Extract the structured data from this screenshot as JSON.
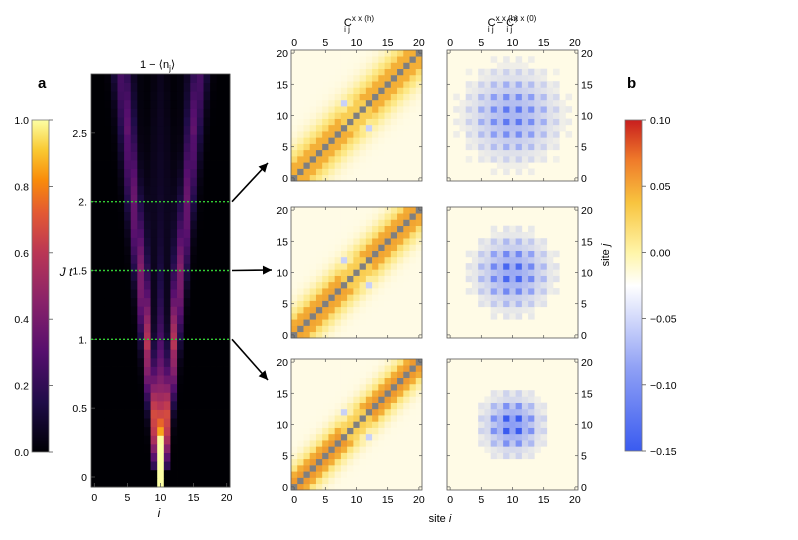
{
  "panel_labels": {
    "a": "a",
    "b": "b"
  },
  "heatmap_title": "1 − ⟨n",
  "heatmap_title_sub": "j",
  "heatmap_title_close": "⟩",
  "top_title_left": "C",
  "top_title_left_sup": "x x (h)",
  "top_title_left_sub": "i j",
  "top_title_right_a": "C",
  "top_title_right_a_sup": "x x (h)",
  "top_title_right_a_sub": "i j",
  "top_title_minus": " − ",
  "top_title_right_b": "C",
  "top_title_right_b_sup": "x x (0)",
  "top_title_right_b_sub": "i j",
  "bottom_axis_label_pre": "site ",
  "bottom_axis_label_var": "i",
  "right_axis_label_pre": "site ",
  "right_axis_label_var": "j",
  "colors": {
    "marker_line": "#33cc33",
    "diagonal": "#7f7f7f",
    "background_low": "#fffbe6",
    "inferno_high": "#fcffa4"
  },
  "chart_data": [
    {
      "type": "heatmap",
      "name": "occupation",
      "title": "1 − ⟨nj⟩",
      "xlabel": "i",
      "ylabel": "J t",
      "xlim": [
        0,
        20
      ],
      "ylim": [
        0,
        3
      ],
      "x_ticks": [
        "0",
        "5",
        "10",
        "15",
        "20"
      ],
      "y_ticks": [
        "0",
        "0.5",
        "1.",
        "1.5",
        "2.",
        "2.5"
      ],
      "colormap": "inferno",
      "light_cone": "empty sites spread ballistically from the center site (i = 10) outward with time, V-shaped cone reaching i ≈ 4 and i ≈ 17 at J t ≈ 2.8",
      "marker_times": [
        1.0,
        1.5,
        2.0
      ]
    },
    {
      "type": "heatmap",
      "name": "correlation",
      "title": "C_ij^{xx(h)}",
      "rows": [
        "J t = 2.0",
        "J t = 1.5",
        "J t = 1.0"
      ],
      "xlim": [
        0,
        20
      ],
      "ylim": [
        0,
        20
      ],
      "ticks": [
        "0",
        "5",
        "10",
        "15",
        "20"
      ],
      "colormap": "yellow-orange",
      "structure": "gray diagonal i = j, band of nonzero correlation around the diagonal, weaker spot near (10,10)"
    },
    {
      "type": "heatmap",
      "name": "correlation_difference",
      "title": "C_ij^{xx(h)} − C_ij^{xx(0)}",
      "rows": [
        "J t = 2.0",
        "J t = 1.5",
        "J t = 1.0"
      ],
      "xlim": [
        0,
        20
      ],
      "ylim": [
        0,
        20
      ],
      "ticks": [
        "0",
        "5",
        "10",
        "15",
        "20"
      ],
      "colormap": "blue-white-red",
      "structure": "negative (blue) checkerboard pattern around the center (10,10), spreading with time"
    },
    {
      "type": "colorbar",
      "name": "colorbar_a",
      "range": [
        0.0,
        1.0
      ],
      "ticks": [
        "0.0",
        "0.2",
        "0.4",
        "0.6",
        "0.8",
        "1.0"
      ],
      "colormap": "inferno"
    },
    {
      "type": "colorbar",
      "name": "colorbar_b",
      "range": [
        -0.15,
        0.1
      ],
      "ticks": [
        "0.10",
        "0.05",
        "0.00",
        "−0.05",
        "−0.10",
        "−0.15"
      ],
      "colormap": "blue-white-red"
    }
  ]
}
